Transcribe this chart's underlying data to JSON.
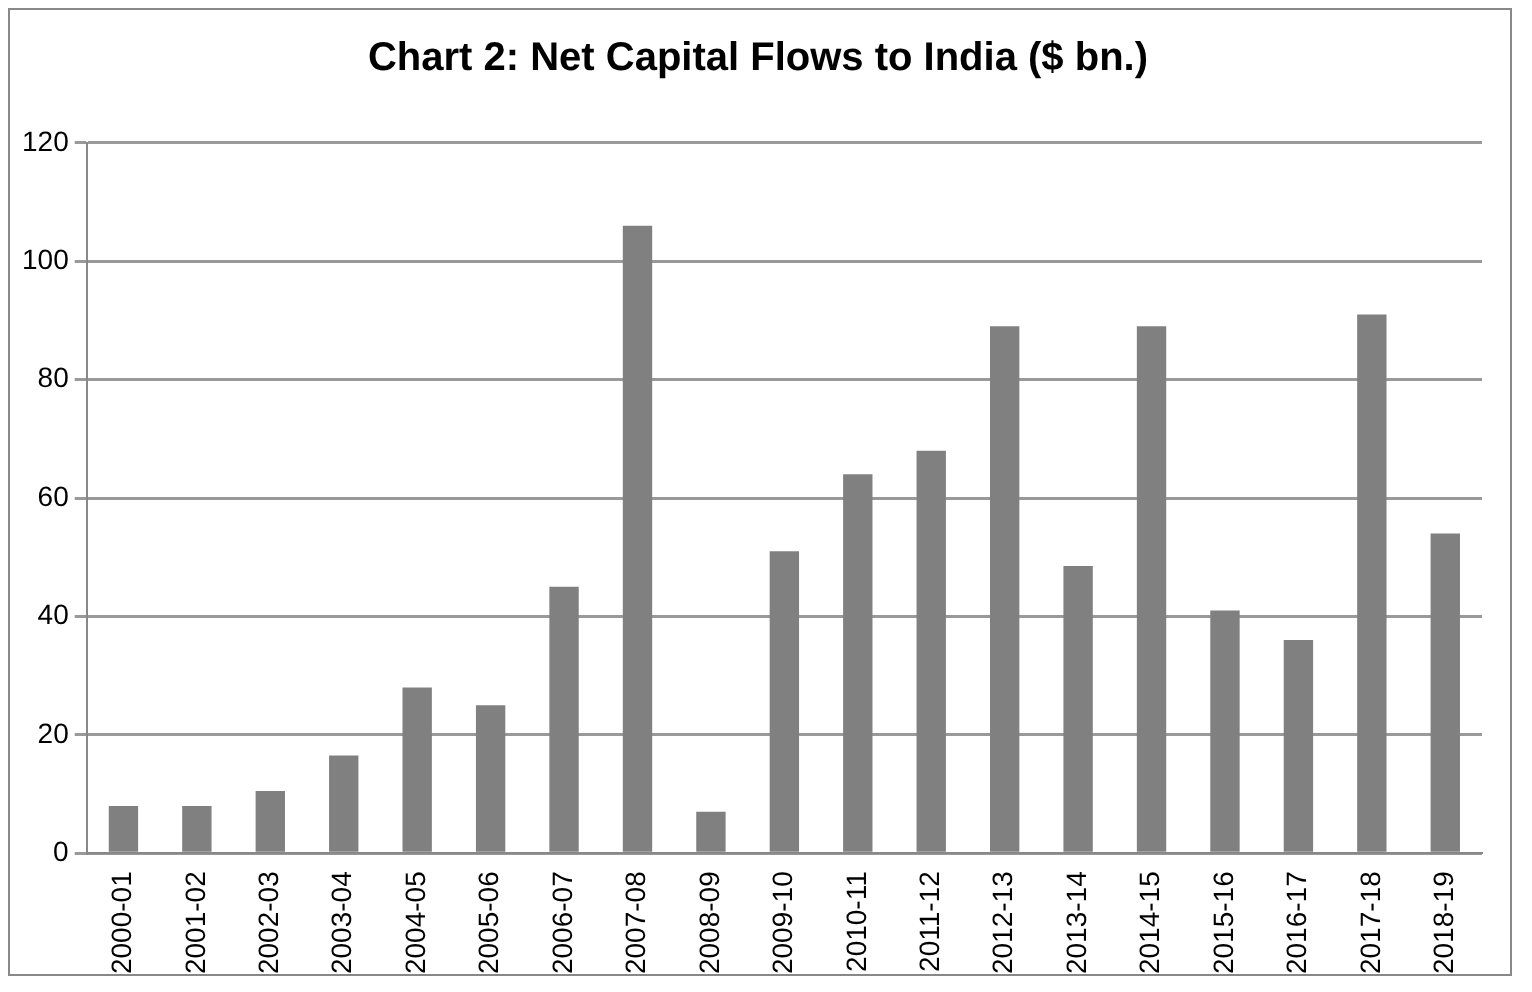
{
  "chart_data": {
    "type": "bar",
    "title": "Chart 2: Net Capital Flows to India ($ bn.)",
    "categories": [
      "2000-01",
      "2001-02",
      "2002-03",
      "2003-04",
      "2004-05",
      "2005-06",
      "2006-07",
      "2007-08",
      "2008-09",
      "2009-10",
      "2010-11",
      "2011-12",
      "2012-13",
      "2013-14",
      "2014-15",
      "2015-16",
      "2016-17",
      "2017-18",
      "2018-19"
    ],
    "values": [
      8,
      8,
      10.5,
      16.5,
      28,
      25,
      45,
      106,
      7,
      51,
      64,
      68,
      89,
      48.5,
      89,
      41,
      36,
      91,
      54
    ],
    "color": "#808080",
    "ylim": [
      0,
      120
    ],
    "yticks": [
      0,
      20,
      40,
      60,
      80,
      100,
      120
    ],
    "grid": "y"
  }
}
